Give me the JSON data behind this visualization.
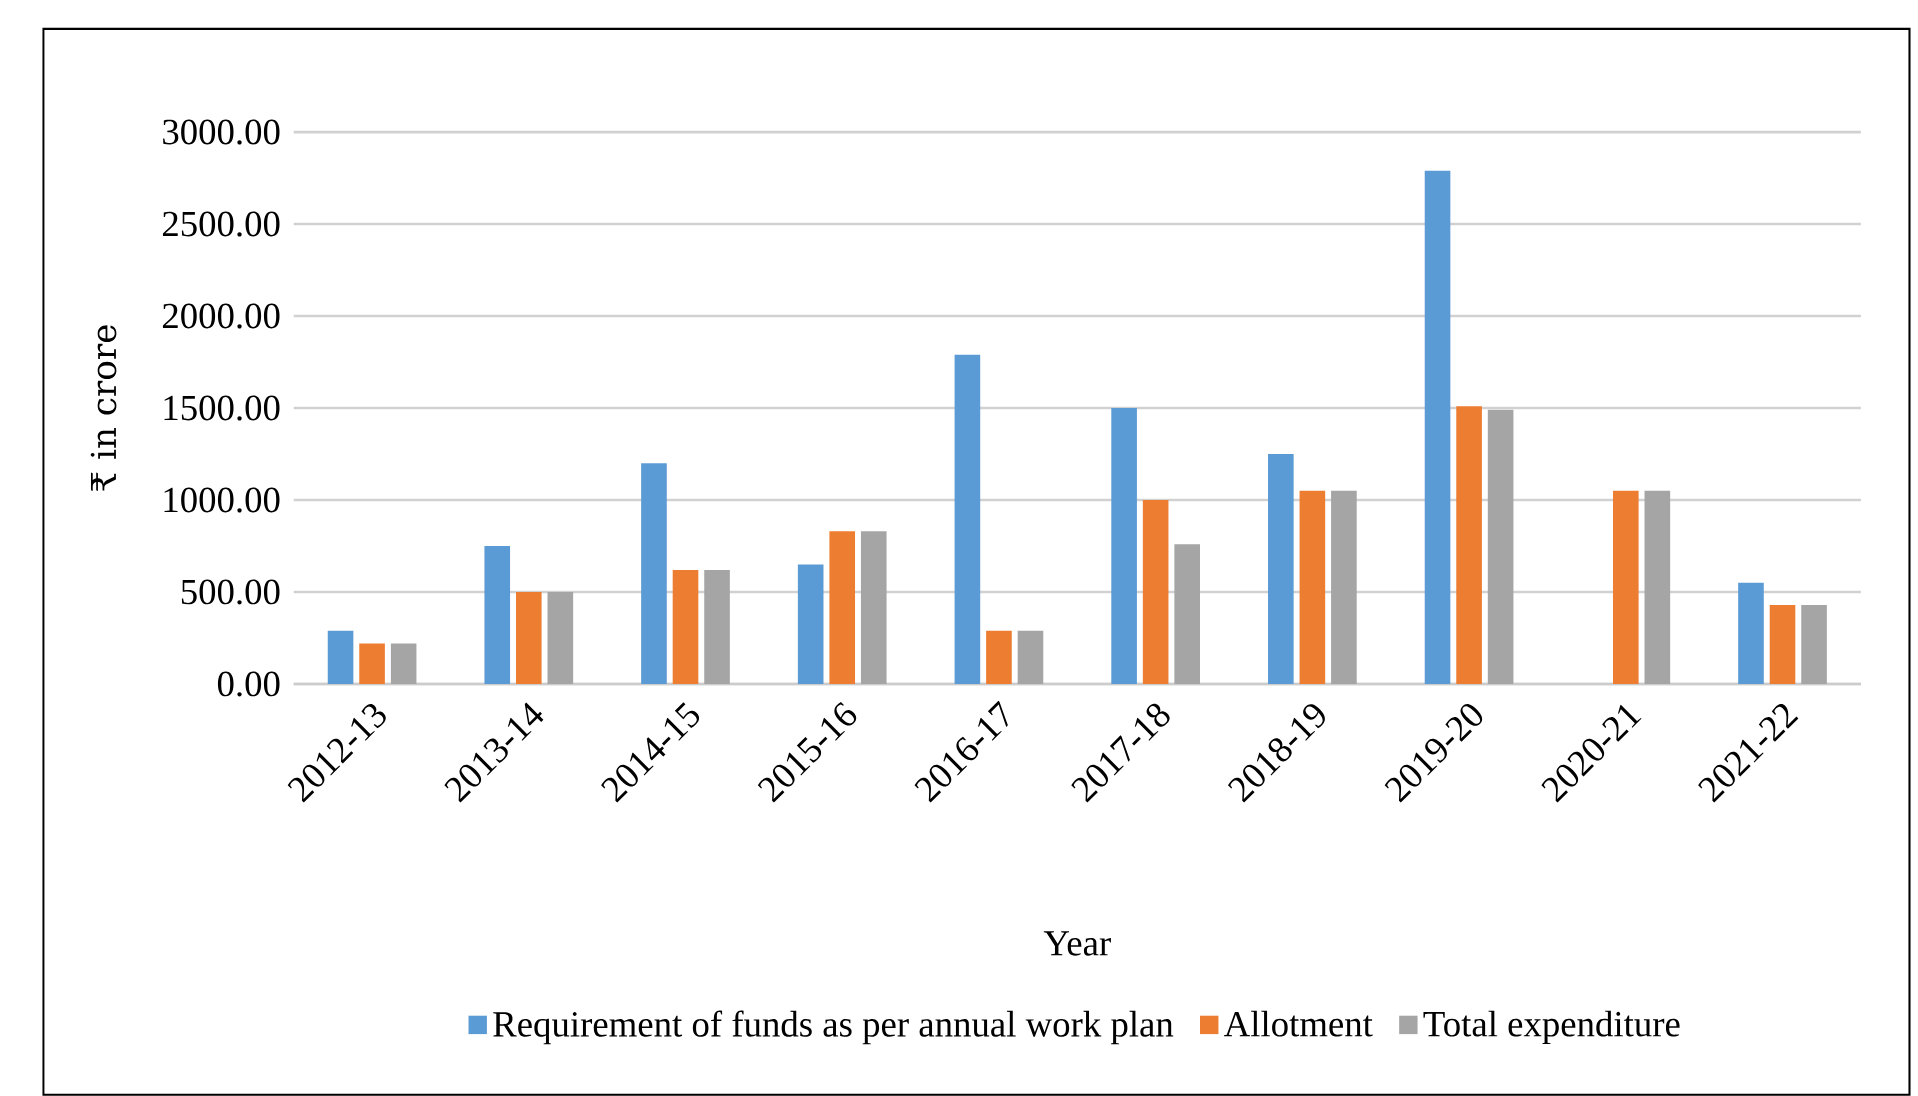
{
  "chart_data": {
    "type": "bar",
    "xlabel": "Year",
    "ylabel": "₹ in crore",
    "categories": [
      "2012-13",
      "2013-14",
      "2014-15",
      "2015-16",
      "2016-17",
      "2017-18",
      "2018-19",
      "2019-20",
      "2020-21",
      "2021-22"
    ],
    "series": [
      {
        "name": "Requirement of funds as per annual work plan",
        "color": "#5b9bd5",
        "values": [
          290,
          750,
          1200,
          650,
          1790,
          1500,
          1250,
          2790,
          null,
          550
        ]
      },
      {
        "name": "Allotment",
        "color": "#ed7d31",
        "values": [
          220,
          500,
          620,
          830,
          290,
          1000,
          1050,
          1510,
          1050,
          430
        ]
      },
      {
        "name": "Total expenditure",
        "color": "#a5a5a5",
        "values": [
          220,
          500,
          620,
          830,
          290,
          760,
          1050,
          1490,
          1050,
          430
        ]
      }
    ],
    "ylim": [
      0,
      3000
    ],
    "yticks": [
      {
        "value": 0,
        "label": "0.00"
      },
      {
        "value": 500,
        "label": "500.00"
      },
      {
        "value": 1000,
        "label": "1000.00"
      },
      {
        "value": 1500,
        "label": "1500.00"
      },
      {
        "value": 2000,
        "label": "2000.00"
      },
      {
        "value": 2500,
        "label": "2500.00"
      },
      {
        "value": 3000,
        "label": "3000.00"
      }
    ],
    "grid": "y",
    "legend": "bottom"
  }
}
